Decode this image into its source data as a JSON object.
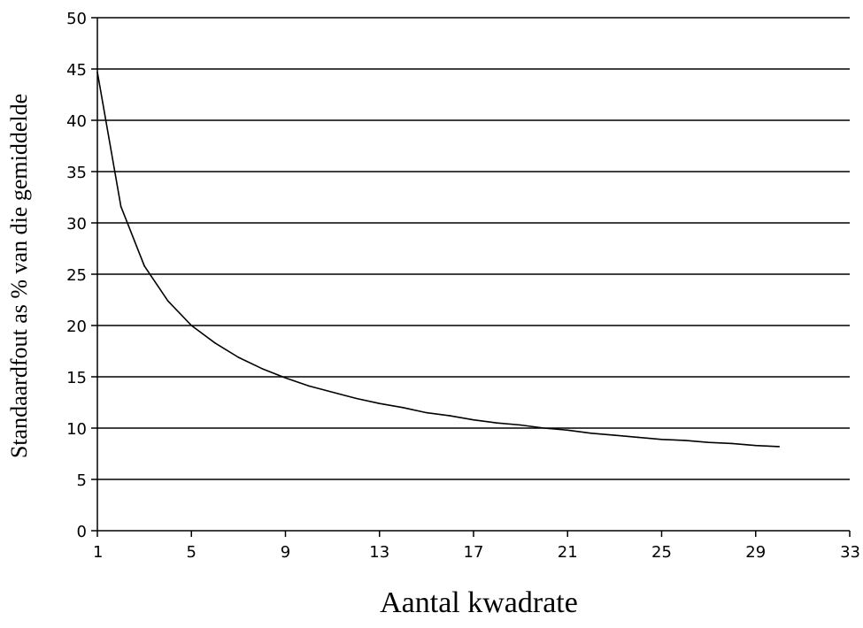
{
  "chart_data": {
    "type": "line",
    "xlabel": "Aantal kwadrate",
    "ylabel": "Standaardfout as % van die gemiddelde",
    "xlim": [
      1,
      33
    ],
    "ylim": [
      0,
      50
    ],
    "x_ticks": [
      "1",
      "5",
      "9",
      "13",
      "17",
      "21",
      "25",
      "29",
      "33"
    ],
    "y_ticks": [
      "0",
      "5",
      "10",
      "15",
      "20",
      "25",
      "30",
      "35",
      "40",
      "45",
      "50"
    ],
    "grid": "horizontal",
    "line_color": "#000000",
    "series": [
      {
        "x": [
          1,
          2,
          3,
          4,
          5,
          6,
          7,
          8,
          9,
          10,
          11,
          12,
          13,
          14,
          15,
          16,
          17,
          18,
          19,
          20,
          21,
          22,
          23,
          24,
          25,
          26,
          27,
          28,
          29,
          30
        ],
        "values": [
          44.7,
          31.6,
          25.8,
          22.4,
          20.0,
          18.3,
          16.9,
          15.8,
          14.9,
          14.1,
          13.5,
          12.9,
          12.4,
          12.0,
          11.5,
          11.2,
          10.8,
          10.5,
          10.3,
          10.0,
          9.8,
          9.5,
          9.3,
          9.1,
          8.9,
          8.8,
          8.6,
          8.5,
          8.3,
          8.2
        ]
      }
    ]
  }
}
